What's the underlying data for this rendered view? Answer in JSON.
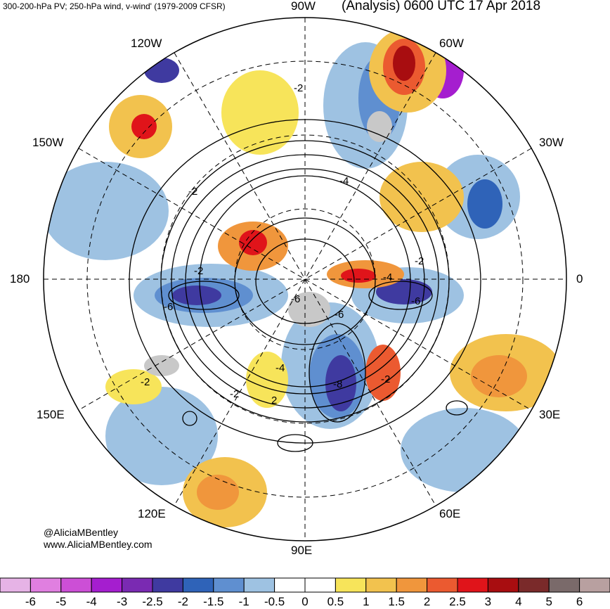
{
  "header": {
    "left_title": "300-200-hPa PV; 250-hPa wind, v-wind' (1979-2009 CFSR)",
    "right_title": "(Analysis) 0600 UTC 17 Apr 2018"
  },
  "longitude_labels": {
    "n90w": "90W",
    "n60w": "60W",
    "n120w": "120W",
    "n150w": "150W",
    "n30w": "30W",
    "n180": "180",
    "n0": "0",
    "n150e": "150E",
    "n30e": "30E",
    "n120e": "120E",
    "n60e": "60E",
    "n90e": "90E"
  },
  "credits": {
    "handle": "@AliciaMBentley",
    "website": "www.AliciaMBentley.com"
  },
  "contour_labels": [
    "-2",
    "-2",
    "-4",
    "-2",
    "-2",
    "-6",
    "-6",
    "-6",
    "-4",
    "-8",
    "-2",
    "2",
    "-2",
    "-4",
    "-6",
    "-2"
  ],
  "colorbar": {
    "colors": [
      "#e6b3e6",
      "#e07fe0",
      "#cc4fd6",
      "#a51ecf",
      "#7a2ab2",
      "#3f3aa0",
      "#2f63b8",
      "#5f8fd0",
      "#9ec2e2",
      "#ffffff",
      "#ffffff",
      "#f7e45a",
      "#f2c24e",
      "#f0963c",
      "#eb5a30",
      "#e0141a",
      "#a80d10",
      "#7a2a2a",
      "#7a6a6a",
      "#b8a0a0"
    ],
    "labels": [
      "-6",
      "-5",
      "-4",
      "-3",
      "-2.5",
      "-2",
      "-1.5",
      "-1",
      "-0.5",
      "0",
      "0.5",
      "1",
      "1.5",
      "2",
      "2.5",
      "3",
      "4",
      "5",
      "6"
    ]
  }
}
